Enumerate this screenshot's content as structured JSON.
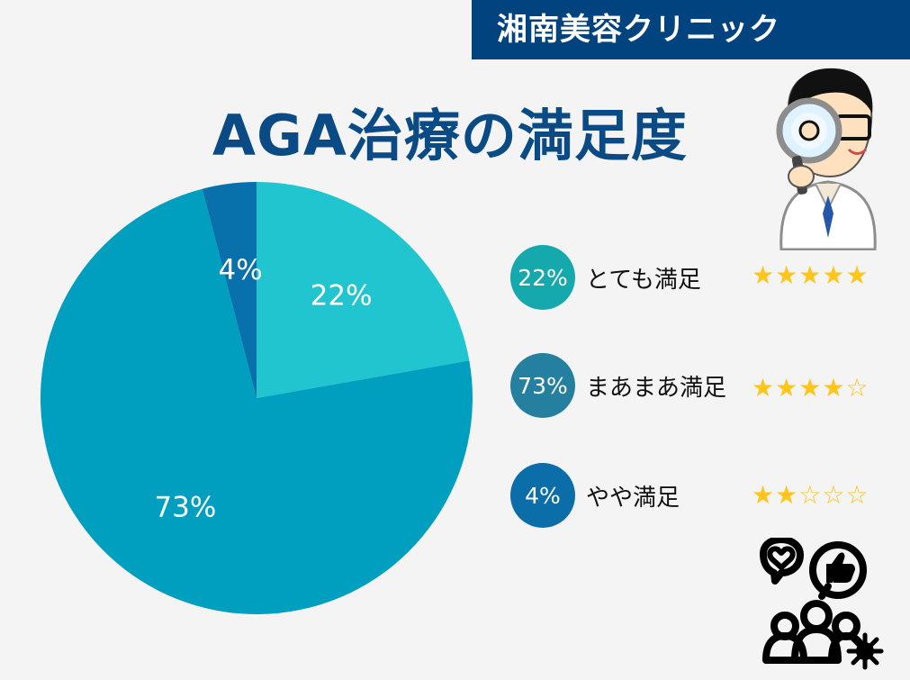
{
  "header": {
    "brand": "湘南美容クリニック"
  },
  "title": "AGA治療の満足度",
  "chart_data": {
    "type": "pie",
    "slices": [
      {
        "label": "22%",
        "value": 22,
        "color": "#21c5cf"
      },
      {
        "label": "73%",
        "value": 73,
        "color": "#009fc0"
      },
      {
        "label": "4%",
        "value": 4,
        "color": "#0870ab"
      }
    ],
    "legend": [
      {
        "percent": "22%",
        "label": "とても満足",
        "color": "#15a9ad",
        "stars": 5
      },
      {
        "percent": "73%",
        "label": "まあまあ満足",
        "color": "#2580a0",
        "stars": 4
      },
      {
        "percent": "4%",
        "label": "やや満足",
        "color": "#0b6ea8",
        "stars": 2
      }
    ],
    "max_stars": 5
  },
  "icons": {
    "doctor": "doctor-with-magnifier-icon",
    "feedback": "people-feedback-icon"
  }
}
